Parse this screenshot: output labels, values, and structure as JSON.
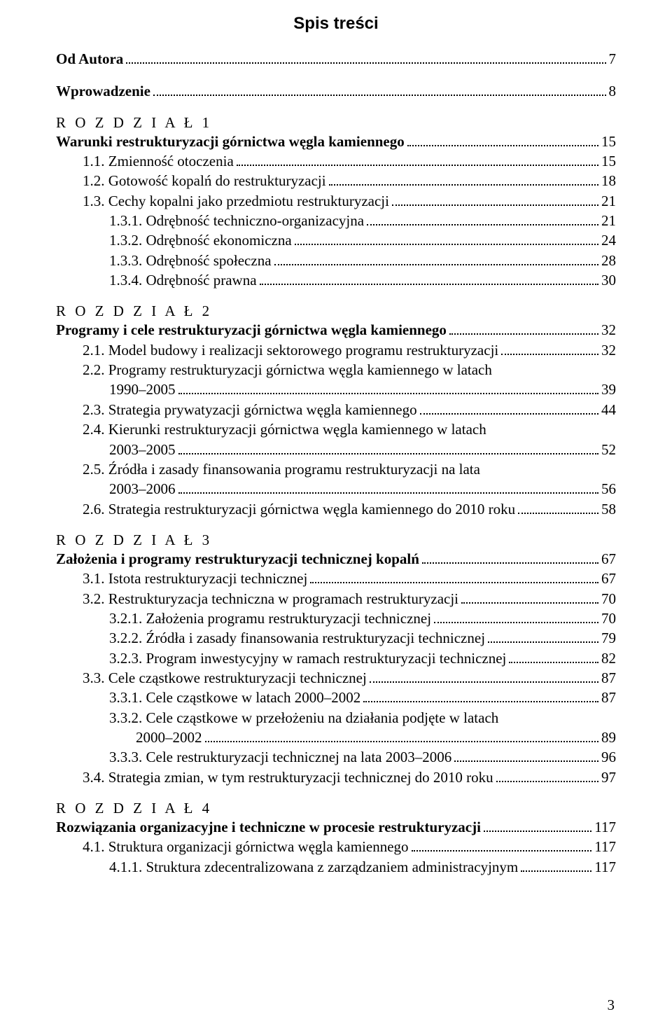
{
  "title": "Spis treści",
  "page_number": "3",
  "lines": [
    {
      "text": "Od Autora",
      "page": "7",
      "bold": true,
      "indent": 0,
      "gap": false
    },
    {
      "text": "Wprowadzenie",
      "page": "8",
      "bold": true,
      "indent": 0,
      "gap": true
    },
    {
      "label": "R O Z D Z I A Ł   1",
      "chapter": true
    },
    {
      "text": "Warunki restrukturyzacji górnictwa węgla kamiennego",
      "page": "15",
      "bold": true,
      "indent": 0
    },
    {
      "text": "1.1. Zmienność otoczenia",
      "page": "15",
      "indent": 1
    },
    {
      "text": "1.2. Gotowość kopalń do restrukturyzacji",
      "page": "18",
      "indent": 1
    },
    {
      "text": "1.3. Cechy kopalni jako przedmiotu restrukturyzacji",
      "page": "21",
      "indent": 1
    },
    {
      "text": "1.3.1. Odrębność techniczno-organizacyjna",
      "page": "21",
      "indent": 2
    },
    {
      "text": "1.3.2. Odrębność ekonomiczna",
      "page": "24",
      "indent": 2
    },
    {
      "text": "1.3.3. Odrębność społeczna",
      "page": "28",
      "indent": 2
    },
    {
      "text": "1.3.4. Odrębność prawna",
      "page": "30",
      "indent": 2
    },
    {
      "label": "R O Z D Z I A Ł   2",
      "chapter": true
    },
    {
      "text": "Programy i cele restrukturyzacji górnictwa węgla kamiennego",
      "page": "32",
      "bold": true,
      "indent": 0
    },
    {
      "text": "2.1. Model budowy i realizacji sektorowego programu restrukturyzacji",
      "page": "32",
      "indent": 1
    },
    {
      "text": "2.2. Programy restrukturyzacji górnictwa węgla kamiennego w latach",
      "indent": 1,
      "nowrap_first": true
    },
    {
      "text": "1990–2005",
      "page": "39",
      "indent": 2,
      "cont": true
    },
    {
      "text": "2.3. Strategia prywatyzacji górnictwa węgla kamiennego",
      "page": "44",
      "indent": 1
    },
    {
      "text": "2.4. Kierunki restrukturyzacji górnictwa węgla kamiennego w latach",
      "indent": 1,
      "nowrap_first": true
    },
    {
      "text": "2003–2005",
      "page": "52",
      "indent": 2,
      "cont": true
    },
    {
      "text": "2.5. Źródła i zasady finansowania programu restrukturyzacji na lata",
      "indent": 1,
      "nowrap_first": true
    },
    {
      "text": "2003–2006",
      "page": "56",
      "indent": 2,
      "cont": true
    },
    {
      "text": "2.6. Strategia restrukturyzacji górnictwa węgla kamiennego do 2010 roku",
      "page": "58",
      "indent": 1
    },
    {
      "label": "R O Z D Z I A Ł   3",
      "chapter": true
    },
    {
      "text": "Założenia i programy restrukturyzacji technicznej kopalń",
      "page": "67",
      "bold": true,
      "indent": 0
    },
    {
      "text": "3.1. Istota restrukturyzacji technicznej",
      "page": "67",
      "indent": 1
    },
    {
      "text": "3.2. Restrukturyzacja techniczna w programach restrukturyzacji",
      "page": "70",
      "indent": 1
    },
    {
      "text": "3.2.1. Założenia programu restrukturyzacji technicznej",
      "page": "70",
      "indent": 2
    },
    {
      "text": "3.2.2. Źródła i zasady finansowania restrukturyzacji technicznej",
      "page": "79",
      "indent": 2
    },
    {
      "text": "3.2.3. Program inwestycyjny w ramach restrukturyzacji technicznej",
      "page": "82",
      "indent": 2
    },
    {
      "text": "3.3. Cele cząstkowe restrukturyzacji technicznej",
      "page": "87",
      "indent": 1
    },
    {
      "text": "3.3.1. Cele cząstkowe w latach 2000–2002",
      "page": "87",
      "indent": 2
    },
    {
      "text": "3.3.2. Cele cząstkowe w przełożeniu na działania podjęte w latach",
      "indent": 2,
      "nowrap_first": true
    },
    {
      "text": "2000–2002",
      "page": "89",
      "indent": 3,
      "cont": true
    },
    {
      "text": "3.3.3. Cele restrukturyzacji technicznej na lata 2003–2006",
      "page": "96",
      "indent": 2
    },
    {
      "text": "3.4. Strategia zmian, w tym restrukturyzacji technicznej do 2010 roku",
      "page": "97",
      "indent": 1
    },
    {
      "label": "R O Z D Z I A Ł   4",
      "chapter": true
    },
    {
      "text": "Rozwiązania organizacyjne i techniczne w procesie restrukturyzacji",
      "page": "117",
      "bold": true,
      "indent": 0
    },
    {
      "text": "4.1. Struktura organizacji górnictwa węgla kamiennego",
      "page": "117",
      "indent": 1
    },
    {
      "text": "4.1.1. Struktura zdecentralizowana z zarządzaniem administracyjnym",
      "page": "117",
      "indent": 2
    }
  ]
}
